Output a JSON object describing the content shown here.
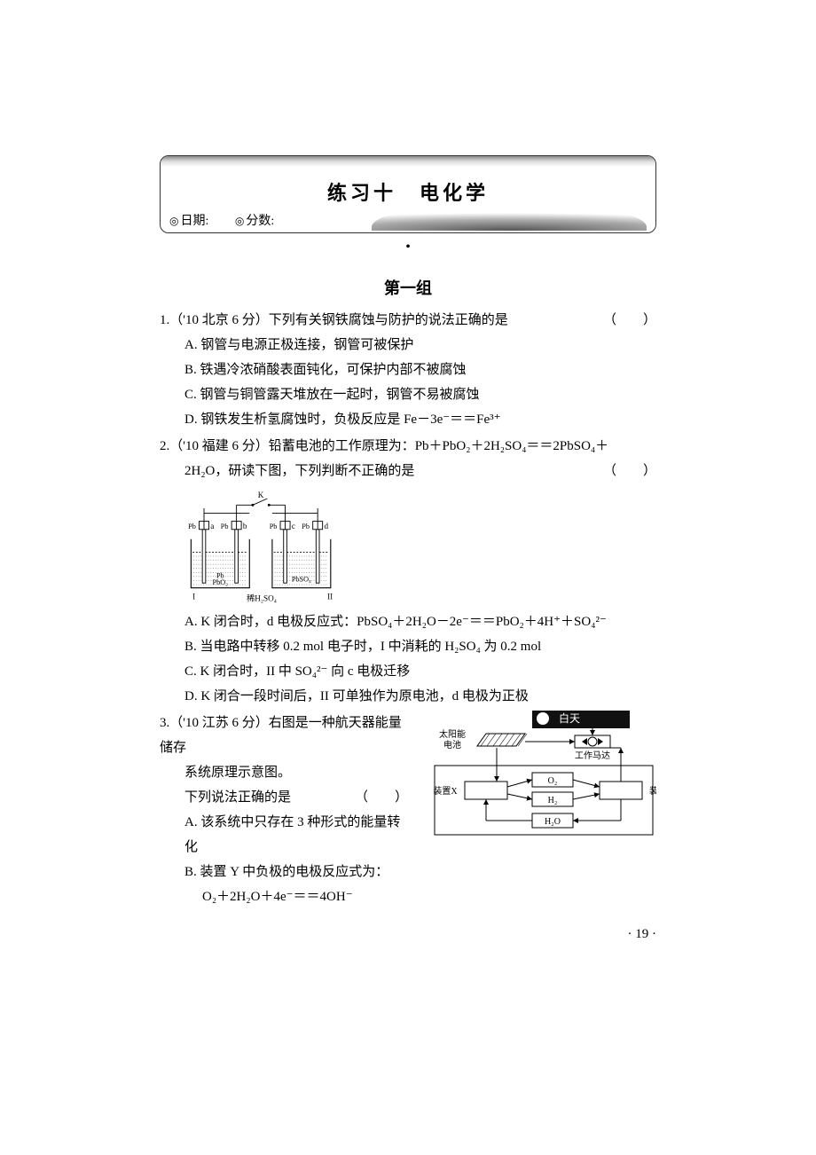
{
  "header": {
    "title": "练习十　电化学",
    "date_label": "日期:",
    "score_label": "分数:"
  },
  "dot": "•",
  "group_title": "第一组",
  "q1": {
    "stem": "1.（'10 北京 6 分）下列有关钢铁腐蚀与防护的说法正确的是",
    "paren": "（　　）",
    "optA": "A. 钢管与电源正极连接，钢管可被保护",
    "optB": "B. 铁遇冷浓硝酸表面钝化，可保护内部不被腐蚀",
    "optC": "C. 钢管与铜管露天堆放在一起时，钢管不易被腐蚀",
    "optD": "D. 钢铁发生析氢腐蚀时，负极反应是 Fe－3e⁻＝＝Fe³⁺"
  },
  "q2": {
    "stem1": "2.（'10 福建 6 分）铅蓄电池的工作原理为：Pb＋PbO₂＋2H₂SO₄＝＝2PbSO₄＋",
    "stem2": "2H₂O，研读下图，下列判断不正确的是",
    "paren": "（　　）",
    "optA": "A. K 闭合时，d 电极反应式：PbSO₄＋2H₂O－2e⁻＝＝PbO₂＋4H⁺＋SO₄²⁻",
    "optB": "B. 当电路中转移 0.2 mol 电子时，I 中消耗的 H₂SO₄ 为 0.2 mol",
    "optC": "C. K 闭合时，II 中 SO₄²⁻ 向 c 电极迁移",
    "optD": "D. K 闭合一段时间后，II 可单独作为原电池，d 电极为正极",
    "fig": {
      "K": "K",
      "a": "a",
      "b": "b",
      "c": "c",
      "d": "d",
      "Pb_small": "Pb",
      "Pb": "Pb",
      "PbO2": "PbO₂",
      "PbSO4": "PbSO₄",
      "I": "I",
      "II": "II",
      "dilute": "稀H₂SO₄",
      "beaker_stroke": "#000000",
      "liquid_fill": "#ffffff",
      "dash": "2,2",
      "font_label": 10,
      "font_small": 9
    }
  },
  "q3": {
    "stem1": "3.（'10 江苏 6 分）右图是一种航天器能量储存",
    "stem2": "系统原理示意图。",
    "stem3": "下列说法正确的是",
    "paren": "（　　）",
    "optA": "A. 该系统中只存在 3 种形式的能量转化",
    "optB": "B. 装置 Y 中负极的电极反应式为：",
    "optB2": "O₂＋2H₂O＋4e⁻＝＝4OH⁻",
    "fig": {
      "daytime": "白天",
      "solar": "太阳能\n电池",
      "motor": "工作马达",
      "devX": "装置X",
      "devY": "装置Y",
      "O2": "O₂",
      "H2": "H₂",
      "H2O": "H₂O",
      "sun": "☀",
      "night_bg": "#111111",
      "night_text": "#ffffff",
      "box_fill": "#ffffff",
      "box_stroke": "#000000",
      "font": 10
    }
  },
  "page_number": "· 19 ·"
}
